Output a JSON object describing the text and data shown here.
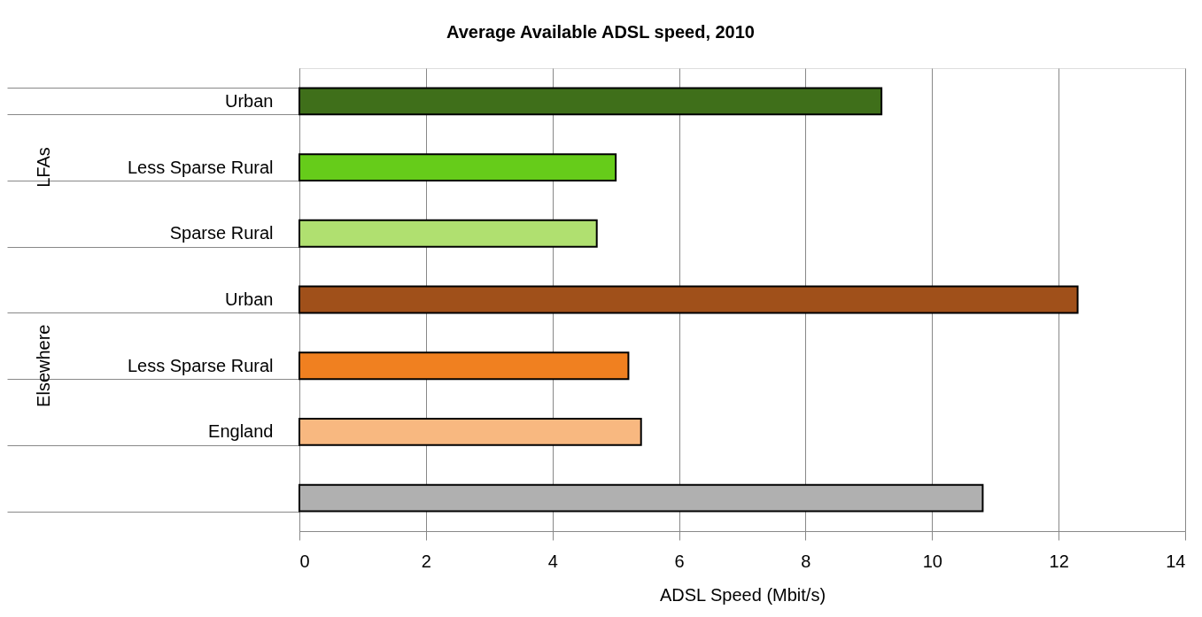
{
  "chart_data": {
    "type": "bar",
    "orientation": "horizontal",
    "title": "Average Available ADSL speed, 2010",
    "xlabel": "ADSL Speed (Mbit/s)",
    "categories": [
      "Urban",
      "Less Sparse Rural",
      "Sparse Rural",
      "Urban",
      "Less Sparse Rural",
      "England",
      null
    ],
    "values": [
      9.2,
      5.0,
      4.7,
      12.3,
      5.2,
      5.4,
      10.8
    ],
    "colors": [
      "#3f6f1a",
      "#66cc1a",
      "#b0e070",
      "#a0501a",
      "#f08020",
      "#f8b880",
      "#b0b0b0"
    ],
    "annotations": [
      "LFAs",
      "Elsewhere"
    ],
    "xlim": [
      0,
      14
    ],
    "xticks": [
      0,
      2,
      4,
      6,
      8,
      10,
      12,
      14
    ],
    "grid": "x",
    "legend": false
  }
}
